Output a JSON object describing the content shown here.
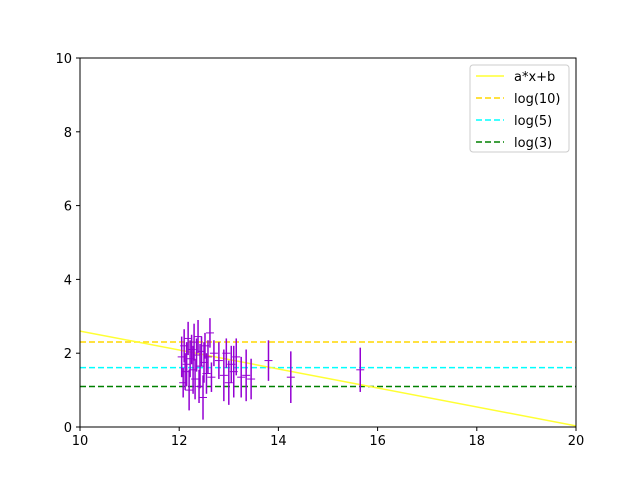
{
  "chart_data": {
    "type": "scatter",
    "title": "",
    "xlabel": "",
    "ylabel": "",
    "xlim": [
      10,
      20
    ],
    "ylim": [
      0,
      10
    ],
    "grid": false,
    "legend_position": "top-right",
    "x_ticks": [
      "10",
      "12",
      "14",
      "16",
      "18",
      "20"
    ],
    "y_ticks": [
      "0",
      "2",
      "4",
      "6",
      "8",
      "10"
    ],
    "fit_line": {
      "name": "a*x+b",
      "color": "#ffff33",
      "x": [
        10,
        20
      ],
      "y": [
        2.6,
        0.03
      ]
    },
    "reference_lines": [
      {
        "name": "log(10)",
        "y": 2.303,
        "color": "#ffd700"
      },
      {
        "name": "log(5)",
        "y": 1.609,
        "color": "#00ffff"
      },
      {
        "name": "log(3)",
        "y": 1.099,
        "color": "#008000"
      }
    ],
    "series": [
      {
        "color": "#9400d3",
        "points": [
          {
            "x": 12.05,
            "y": 1.9,
            "yerr": 0.55
          },
          {
            "x": 12.08,
            "y": 1.2,
            "yerr": 0.4
          },
          {
            "x": 12.1,
            "y": 2.2,
            "yerr": 0.45
          },
          {
            "x": 12.12,
            "y": 1.5,
            "yerr": 0.5
          },
          {
            "x": 12.15,
            "y": 1.7,
            "yerr": 0.6
          },
          {
            "x": 12.18,
            "y": 2.4,
            "yerr": 0.45
          },
          {
            "x": 12.2,
            "y": 1.0,
            "yerr": 0.55
          },
          {
            "x": 12.22,
            "y": 1.85,
            "yerr": 0.5
          },
          {
            "x": 12.25,
            "y": 2.1,
            "yerr": 0.4
          },
          {
            "x": 12.28,
            "y": 1.55,
            "yerr": 0.65
          },
          {
            "x": 12.3,
            "y": 2.3,
            "yerr": 0.5
          },
          {
            "x": 12.32,
            "y": 1.3,
            "yerr": 0.55
          },
          {
            "x": 12.35,
            "y": 1.95,
            "yerr": 0.45
          },
          {
            "x": 12.38,
            "y": 2.45,
            "yerr": 0.45
          },
          {
            "x": 12.4,
            "y": 1.1,
            "yerr": 0.45
          },
          {
            "x": 12.42,
            "y": 1.65,
            "yerr": 0.6
          },
          {
            "x": 12.45,
            "y": 2.05,
            "yerr": 0.4
          },
          {
            "x": 12.48,
            "y": 0.8,
            "yerr": 0.6
          },
          {
            "x": 12.5,
            "y": 1.75,
            "yerr": 0.55
          },
          {
            "x": 12.52,
            "y": 2.2,
            "yerr": 0.35
          },
          {
            "x": 12.55,
            "y": 1.45,
            "yerr": 0.55
          },
          {
            "x": 12.58,
            "y": 1.9,
            "yerr": 0.45
          },
          {
            "x": 12.62,
            "y": 2.55,
            "yerr": 0.4
          },
          {
            "x": 12.65,
            "y": 1.35,
            "yerr": 0.4
          },
          {
            "x": 12.7,
            "y": 2.0,
            "yerr": 0.35
          },
          {
            "x": 12.8,
            "y": 1.8,
            "yerr": 0.5
          },
          {
            "x": 12.9,
            "y": 1.4,
            "yerr": 0.7
          },
          {
            "x": 12.95,
            "y": 2.0,
            "yerr": 0.4
          },
          {
            "x": 13.0,
            "y": 1.2,
            "yerr": 0.6
          },
          {
            "x": 13.05,
            "y": 1.7,
            "yerr": 0.5
          },
          {
            "x": 13.1,
            "y": 1.5,
            "yerr": 0.7
          },
          {
            "x": 13.15,
            "y": 1.9,
            "yerr": 0.5
          },
          {
            "x": 13.25,
            "y": 1.35,
            "yerr": 0.55
          },
          {
            "x": 13.35,
            "y": 1.4,
            "yerr": 0.7
          },
          {
            "x": 13.45,
            "y": 1.3,
            "yerr": 0.55
          },
          {
            "x": 13.8,
            "y": 1.8,
            "yerr": 0.55
          },
          {
            "x": 14.25,
            "y": 1.35,
            "yerr": 0.7
          },
          {
            "x": 15.65,
            "y": 1.55,
            "yerr": 0.6
          }
        ]
      }
    ]
  }
}
